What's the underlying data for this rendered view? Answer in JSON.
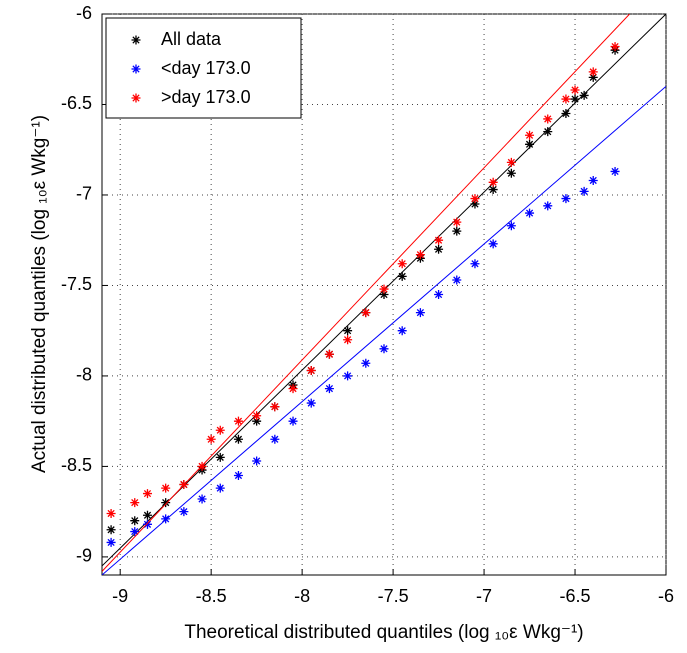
{
  "chart_data": {
    "type": "scatter",
    "xlabel": "Theoretical distributed quantiles (log ₁₀ε Wkg⁻¹)",
    "ylabel": "Actual distributed quantiles (log ₁₀ε Wkg⁻¹)",
    "xlim": [
      -9.1,
      -6
    ],
    "ylim": [
      -9.1,
      -6
    ],
    "xticks": [
      -9,
      -8.5,
      -8,
      -7.5,
      -7,
      -6.5,
      -6
    ],
    "yticks": [
      -9,
      -8.5,
      -8,
      -7.5,
      -7,
      -6.5,
      -6
    ],
    "grid": true,
    "legend": "upper left",
    "series": [
      {
        "name": "All data",
        "color": "#000000",
        "x": [
          -9.05,
          -8.92,
          -8.85,
          -8.75,
          -8.65,
          -8.55,
          -8.45,
          -8.35,
          -8.25,
          -8.15,
          -8.05,
          -7.95,
          -7.85,
          -7.75,
          -7.65,
          -7.55,
          -7.45,
          -7.35,
          -7.25,
          -7.15,
          -7.05,
          -6.95,
          -6.85,
          -6.75,
          -6.65,
          -6.55,
          -6.5,
          -6.45,
          -6.4,
          -6.28
        ],
        "y": [
          -8.85,
          -8.8,
          -8.77,
          -8.7,
          -8.6,
          -8.52,
          -8.45,
          -8.35,
          -8.25,
          -8.17,
          -8.05,
          -7.97,
          -7.88,
          -7.75,
          -7.65,
          -7.55,
          -7.45,
          -7.35,
          -7.3,
          -7.2,
          -7.05,
          -6.97,
          -6.88,
          -6.72,
          -6.65,
          -6.55,
          -6.47,
          -6.45,
          -6.35,
          -6.2
        ],
        "fit": {
          "x": [
            -9.1,
            -6
          ],
          "y": [
            -9.05,
            -6
          ]
        }
      },
      {
        "name": "<day 173.0",
        "color": "#0000ff",
        "x": [
          -9.05,
          -8.92,
          -8.85,
          -8.75,
          -8.65,
          -8.55,
          -8.45,
          -8.35,
          -8.25,
          -8.15,
          -8.05,
          -7.95,
          -7.85,
          -7.75,
          -7.65,
          -7.55,
          -7.45,
          -7.35,
          -7.25,
          -7.15,
          -7.05,
          -6.95,
          -6.85,
          -6.75,
          -6.65,
          -6.55,
          -6.45,
          -6.4,
          -6.28
        ],
        "y": [
          -8.92,
          -8.86,
          -8.82,
          -8.79,
          -8.75,
          -8.68,
          -8.62,
          -8.55,
          -8.47,
          -8.35,
          -8.25,
          -8.15,
          -8.07,
          -8.0,
          -7.93,
          -7.85,
          -7.75,
          -7.65,
          -7.55,
          -7.47,
          -7.38,
          -7.27,
          -7.17,
          -7.1,
          -7.06,
          -7.02,
          -6.98,
          -6.92,
          -6.87
        ],
        "fit": {
          "x": [
            -9.1,
            -6
          ],
          "y": [
            -9.1,
            -6.4
          ]
        }
      },
      {
        "name": ">day 173.0",
        "color": "#ff0000",
        "x": [
          -9.05,
          -8.92,
          -8.85,
          -8.75,
          -8.65,
          -8.55,
          -8.5,
          -8.45,
          -8.35,
          -8.25,
          -8.15,
          -8.05,
          -7.95,
          -7.85,
          -7.75,
          -7.65,
          -7.55,
          -7.45,
          -7.35,
          -7.25,
          -7.15,
          -7.05,
          -6.95,
          -6.85,
          -6.75,
          -6.65,
          -6.55,
          -6.5,
          -6.4,
          -6.28
        ],
        "y": [
          -8.76,
          -8.7,
          -8.65,
          -8.62,
          -8.6,
          -8.5,
          -8.35,
          -8.3,
          -8.25,
          -8.22,
          -8.17,
          -8.07,
          -7.97,
          -7.88,
          -7.8,
          -7.65,
          -7.52,
          -7.38,
          -7.33,
          -7.25,
          -7.15,
          -7.02,
          -6.93,
          -6.82,
          -6.67,
          -6.58,
          -6.47,
          -6.42,
          -6.32,
          -6.18
        ],
        "fit": {
          "x": [
            -9.1,
            -6.2
          ],
          "y": [
            -9.08,
            -6
          ]
        }
      }
    ]
  }
}
